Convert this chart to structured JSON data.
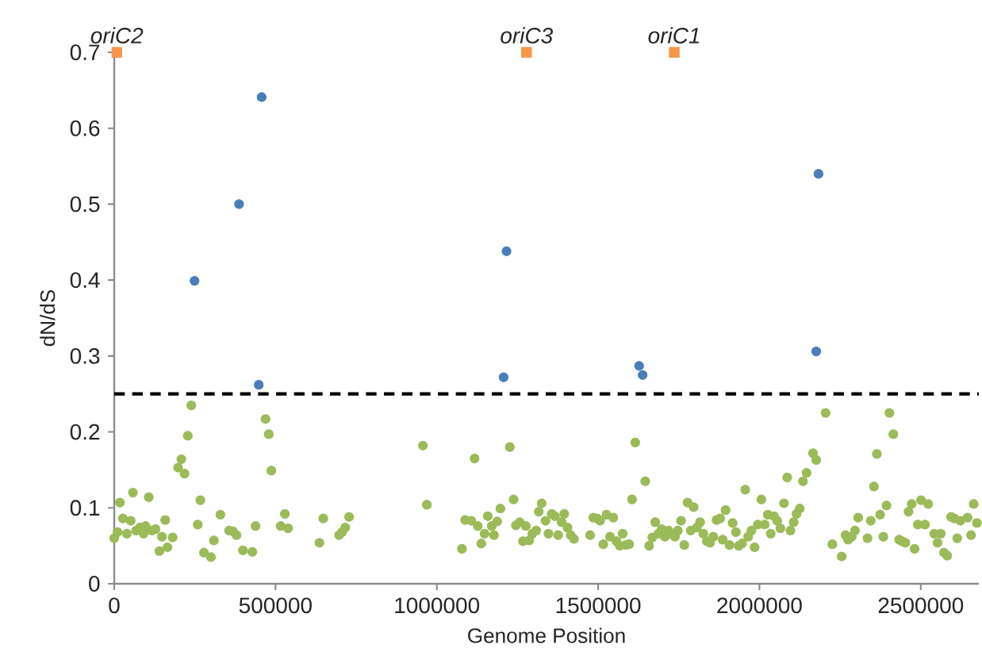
{
  "chart_data": {
    "type": "scatter",
    "xlabel": "Genome Position",
    "ylabel": "dN/dS",
    "xlim": [
      0,
      2680000
    ],
    "ylim": [
      0,
      0.7
    ],
    "xticks": [
      0,
      500000,
      1000000,
      1500000,
      2000000,
      2500000
    ],
    "yticks": [
      0,
      0.1,
      0.2,
      0.3,
      0.4,
      0.5,
      0.6,
      0.7
    ],
    "ref_lines": [
      {
        "axis": "y",
        "value": 0.25,
        "color": "#000000",
        "line_style": "dashed"
      }
    ],
    "annotations": [
      {
        "text": "oriC2",
        "x": 8000,
        "y": 0.7
      },
      {
        "text": "oriC3",
        "x": 1278000,
        "y": 0.7
      },
      {
        "text": "oriC1",
        "x": 1736000,
        "y": 0.7
      }
    ],
    "series": [
      {
        "marker": "square",
        "color": "#f79646",
        "x": [
          8000,
          1278000,
          1736000
        ],
        "values": [
          0.7,
          0.7,
          0.7
        ]
      },
      {
        "marker": "circle",
        "color": "#4a7ebb",
        "x": [
          249000,
          387000,
          457000,
          448000,
          1216000,
          1207000,
          1627000,
          1638000,
          2183000,
          2176000
        ],
        "values": [
          0.399,
          0.5,
          0.641,
          0.262,
          0.438,
          0.272,
          0.287,
          0.275,
          0.54,
          0.306
        ]
      },
      {
        "marker": "circle",
        "color": "#9bbb59",
        "x": [
          0,
          10000,
          17500,
          27000,
          39000,
          51000,
          58000,
          68000,
          80000,
          91000,
          97000,
          107000,
          117000,
          128000,
          140000,
          148000,
          158000,
          165000,
          181000,
          198000,
          208000,
          218000,
          228000,
          239000,
          259000,
          267000,
          278000,
          300000,
          309000,
          329000,
          356000,
          368000,
          379000,
          399000,
          428000,
          438000,
          469000,
          479000,
          487000,
          516000,
          529000,
          539000,
          636000,
          648000,
          697000,
          706000,
          716000,
          728000,
          957000,
          969000,
          1078000,
          1088000,
          1107000,
          1117000,
          1127000,
          1138000,
          1148000,
          1158000,
          1170000,
          1177000,
          1187000,
          1197000,
          1226000,
          1238000,
          1245000,
          1257000,
          1267000,
          1276000,
          1286000,
          1296000,
          1308000,
          1316000,
          1325000,
          1337000,
          1346000,
          1356000,
          1366000,
          1376000,
          1387000,
          1395000,
          1405000,
          1415000,
          1425000,
          1475000,
          1485000,
          1497000,
          1506000,
          1516000,
          1526000,
          1537000,
          1547000,
          1557000,
          1567000,
          1576000,
          1586000,
          1596000,
          1605000,
          1615000,
          1646000,
          1658000,
          1668000,
          1677000,
          1687000,
          1697000,
          1707000,
          1718000,
          1726000,
          1738000,
          1747000,
          1757000,
          1767000,
          1777000,
          1787000,
          1796000,
          1806000,
          1816000,
          1826000,
          1837000,
          1847000,
          1857000,
          1867000,
          1878000,
          1886000,
          1895000,
          1907000,
          1917000,
          1927000,
          1936000,
          1946000,
          1956000,
          1965000,
          1975000,
          1985000,
          1995000,
          2006000,
          2016000,
          2026000,
          2035000,
          2045000,
          2055000,
          2065000,
          2076000,
          2086000,
          2096000,
          2106000,
          2115000,
          2125000,
          2135000,
          2146000,
          2166000,
          2176000,
          2205000,
          2226000,
          2255000,
          2267000,
          2275000,
          2286000,
          2296000,
          2306000,
          2335000,
          2345000,
          2355000,
          2364000,
          2374000,
          2384000,
          2394000,
          2403000,
          2415000,
          2433000,
          2442000,
          2452000,
          2462000,
          2472000,
          2481000,
          2491000,
          2501000,
          2513000,
          2523000,
          2542000,
          2552000,
          2562000,
          2572000,
          2582000,
          2594000,
          2604000,
          2613000,
          2623000,
          2645000,
          2656000,
          2664000,
          2674000
        ],
        "values": [
          0.06,
          0.068,
          0.107,
          0.086,
          0.066,
          0.083,
          0.12,
          0.07,
          0.074,
          0.066,
          0.076,
          0.114,
          0.07,
          0.072,
          0.043,
          0.062,
          0.084,
          0.048,
          0.061,
          0.153,
          0.164,
          0.145,
          0.195,
          0.235,
          0.078,
          0.11,
          0.041,
          0.035,
          0.057,
          0.091,
          0.07,
          0.069,
          0.064,
          0.044,
          0.042,
          0.076,
          0.217,
          0.197,
          0.149,
          0.076,
          0.092,
          0.073,
          0.054,
          0.086,
          0.064,
          0.068,
          0.074,
          0.088,
          0.182,
          0.104,
          0.046,
          0.084,
          0.083,
          0.165,
          0.076,
          0.053,
          0.066,
          0.089,
          0.076,
          0.064,
          0.082,
          0.099,
          0.18,
          0.111,
          0.077,
          0.081,
          0.056,
          0.076,
          0.057,
          0.066,
          0.07,
          0.095,
          0.106,
          0.083,
          0.066,
          0.092,
          0.089,
          0.064,
          0.081,
          0.092,
          0.074,
          0.064,
          0.059,
          0.064,
          0.087,
          0.086,
          0.083,
          0.052,
          0.091,
          0.062,
          0.087,
          0.056,
          0.05,
          0.066,
          0.051,
          0.052,
          0.111,
          0.186,
          0.135,
          0.05,
          0.061,
          0.081,
          0.066,
          0.072,
          0.062,
          0.07,
          0.066,
          0.062,
          0.07,
          0.083,
          0.051,
          0.107,
          0.07,
          0.101,
          0.074,
          0.081,
          0.066,
          0.056,
          0.054,
          0.062,
          0.084,
          0.086,
          0.058,
          0.097,
          0.051,
          0.08,
          0.068,
          0.05,
          0.053,
          0.124,
          0.062,
          0.07,
          0.048,
          0.078,
          0.111,
          0.078,
          0.091,
          0.066,
          0.089,
          0.083,
          0.073,
          0.106,
          0.14,
          0.07,
          0.081,
          0.092,
          0.099,
          0.135,
          0.146,
          0.172,
          0.163,
          0.225,
          0.052,
          0.036,
          0.064,
          0.058,
          0.062,
          0.07,
          0.087,
          0.06,
          0.083,
          0.128,
          0.171,
          0.091,
          0.062,
          0.103,
          0.225,
          0.197,
          0.058,
          0.056,
          0.054,
          0.095,
          0.105,
          0.046,
          0.078,
          0.11,
          0.078,
          0.105,
          0.066,
          0.054,
          0.066,
          0.041,
          0.037,
          0.088,
          0.086,
          0.06,
          0.083,
          0.087,
          0.064,
          0.105,
          0.08
        ]
      }
    ]
  }
}
